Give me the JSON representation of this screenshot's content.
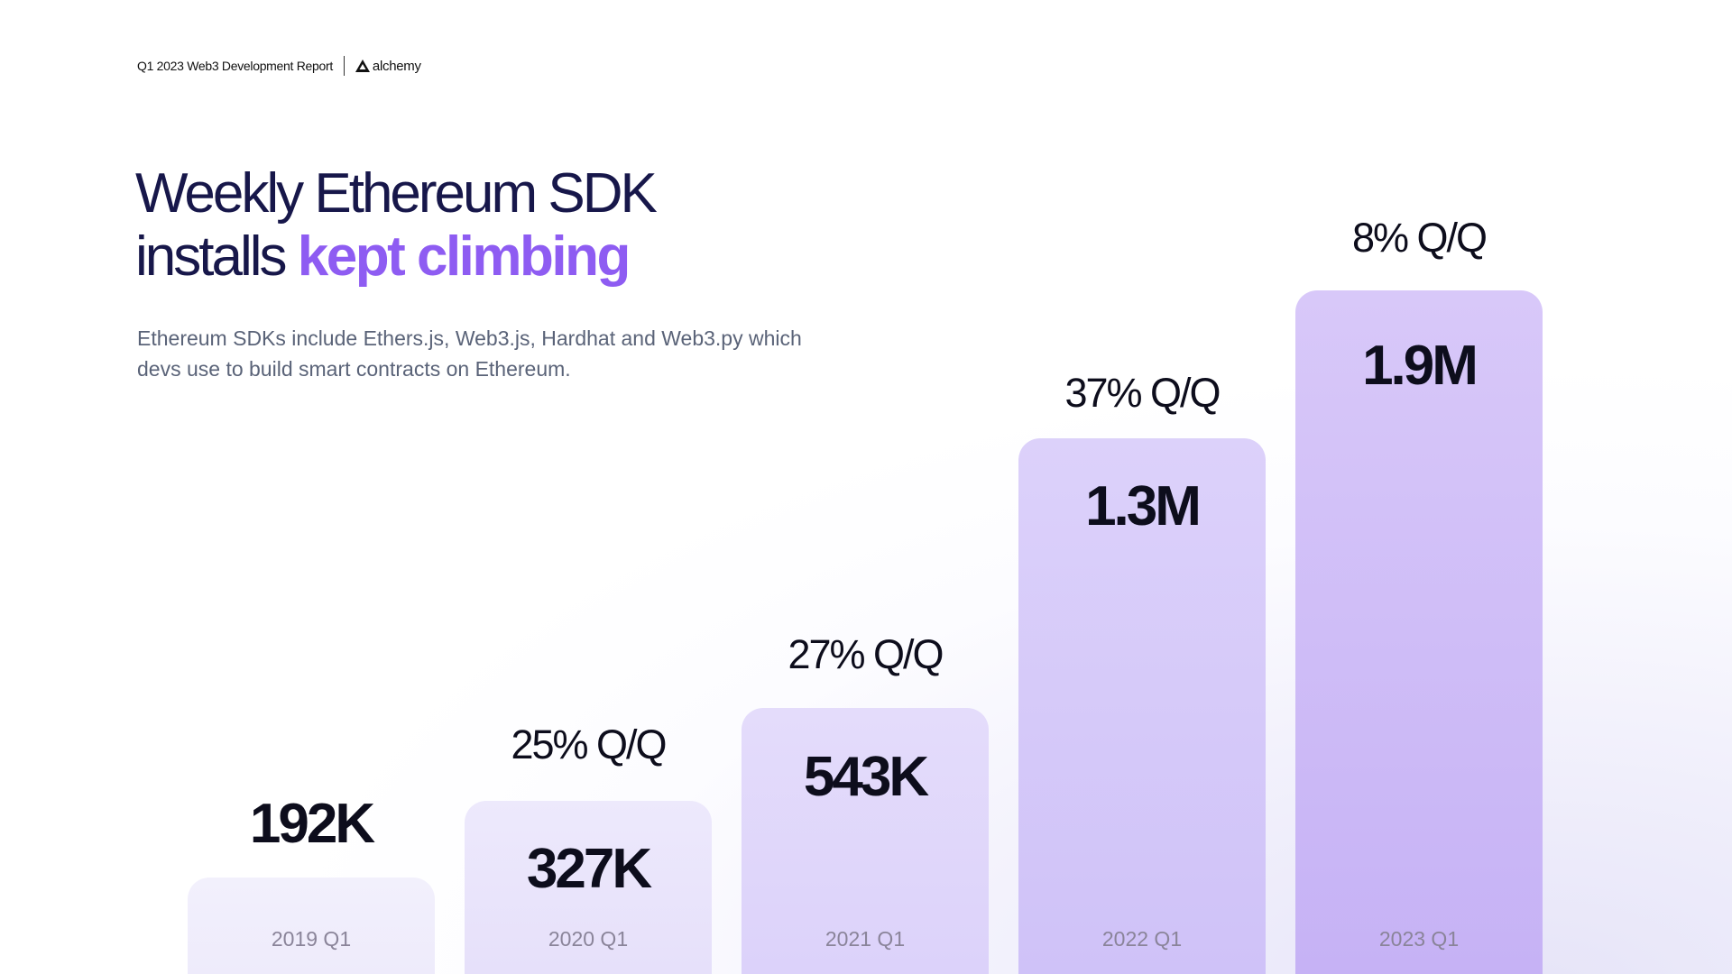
{
  "header": {
    "report": "Q1 2023 Web3 Development Report",
    "brand": "alchemy"
  },
  "title": {
    "line1": "Weekly Ethereum SDK",
    "line2_plain": "installs ",
    "line2_highlight": "kept climbing"
  },
  "subtitle": "Ethereum SDKs include Ethers.js, Web3.js, Hardhat and Web3.py which devs use to build smart contracts on Ethereum.",
  "colors": {
    "title": "#17174a",
    "highlight": "#8e5cf2",
    "bars": [
      "#f1effb",
      "#ebe6fb",
      "#e2d9fa",
      "#d8ccf9",
      "#d3c1f8"
    ]
  },
  "chart_data": {
    "type": "bar",
    "categories": [
      "2019 Q1",
      "2020 Q1",
      "2021 Q1",
      "2022 Q1",
      "2023 Q1"
    ],
    "values": [
      192000,
      327000,
      543000,
      1300000,
      1900000
    ],
    "value_labels": [
      "192K",
      "327K",
      "543K",
      "1.3M",
      "1.9M"
    ],
    "growth_labels": [
      "",
      "25% Q/Q",
      "27% Q/Q",
      "37% Q/Q",
      "8% Q/Q"
    ],
    "title": "Weekly Ethereum SDK installs kept climbing",
    "xlabel": "",
    "ylabel": "",
    "grid": false,
    "legend": "none"
  }
}
